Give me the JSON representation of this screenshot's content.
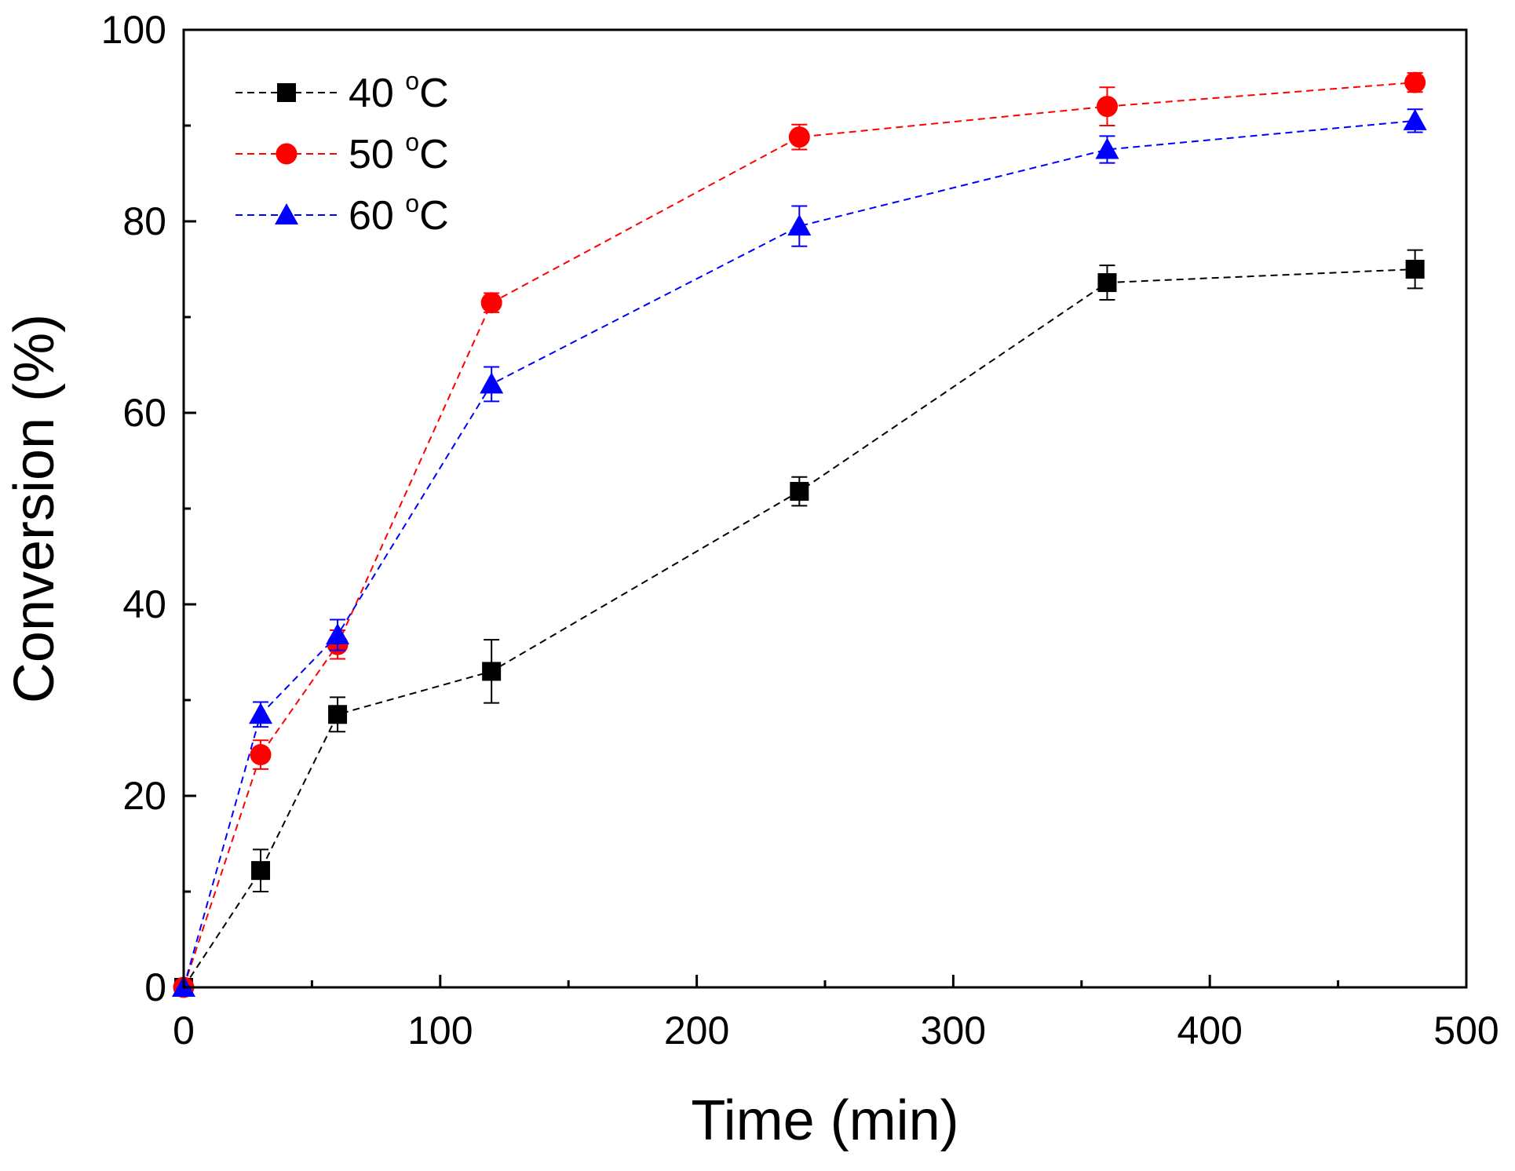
{
  "chart_data": {
    "type": "line",
    "title": "",
    "xlabel": "Time (min)",
    "ylabel": "Conversion (%)",
    "xlim": [
      0,
      500
    ],
    "ylim": [
      0,
      100
    ],
    "xticks": [
      0,
      100,
      200,
      300,
      400,
      500
    ],
    "yticks": [
      0,
      20,
      40,
      60,
      80,
      100
    ],
    "xtick_labels": [
      "0",
      "100",
      "200",
      "300",
      "400",
      "500"
    ],
    "ytick_labels": [
      "0",
      "20",
      "40",
      "60",
      "80",
      "100"
    ],
    "x_minor_step": 50,
    "y_minor_step": 10,
    "grid": false,
    "legend_position": "top-left",
    "x": [
      0,
      30,
      60,
      120,
      240,
      360,
      480
    ],
    "series": [
      {
        "name": "40 ",
        "sup": "o",
        "unit": "C",
        "color": "#000000",
        "marker": "square",
        "values": [
          0,
          12.2,
          28.5,
          33.0,
          51.8,
          73.6,
          75.0
        ],
        "errors": [
          0,
          2.2,
          1.8,
          3.3,
          1.5,
          1.8,
          2.0
        ]
      },
      {
        "name": "50 ",
        "sup": "o",
        "unit": "C",
        "color": "#ff0000",
        "marker": "circle",
        "values": [
          0,
          24.3,
          35.8,
          71.5,
          88.8,
          92.0,
          94.5
        ],
        "errors": [
          0,
          1.5,
          1.5,
          1.0,
          1.3,
          2.0,
          1.0
        ]
      },
      {
        "name": "60 ",
        "sup": "o",
        "unit": "C",
        "color": "#0000ff",
        "marker": "triangle",
        "values": [
          0,
          28.5,
          36.8,
          63.0,
          79.5,
          87.5,
          90.5
        ],
        "errors": [
          0,
          1.3,
          1.6,
          1.8,
          2.1,
          1.4,
          1.2
        ]
      }
    ]
  }
}
